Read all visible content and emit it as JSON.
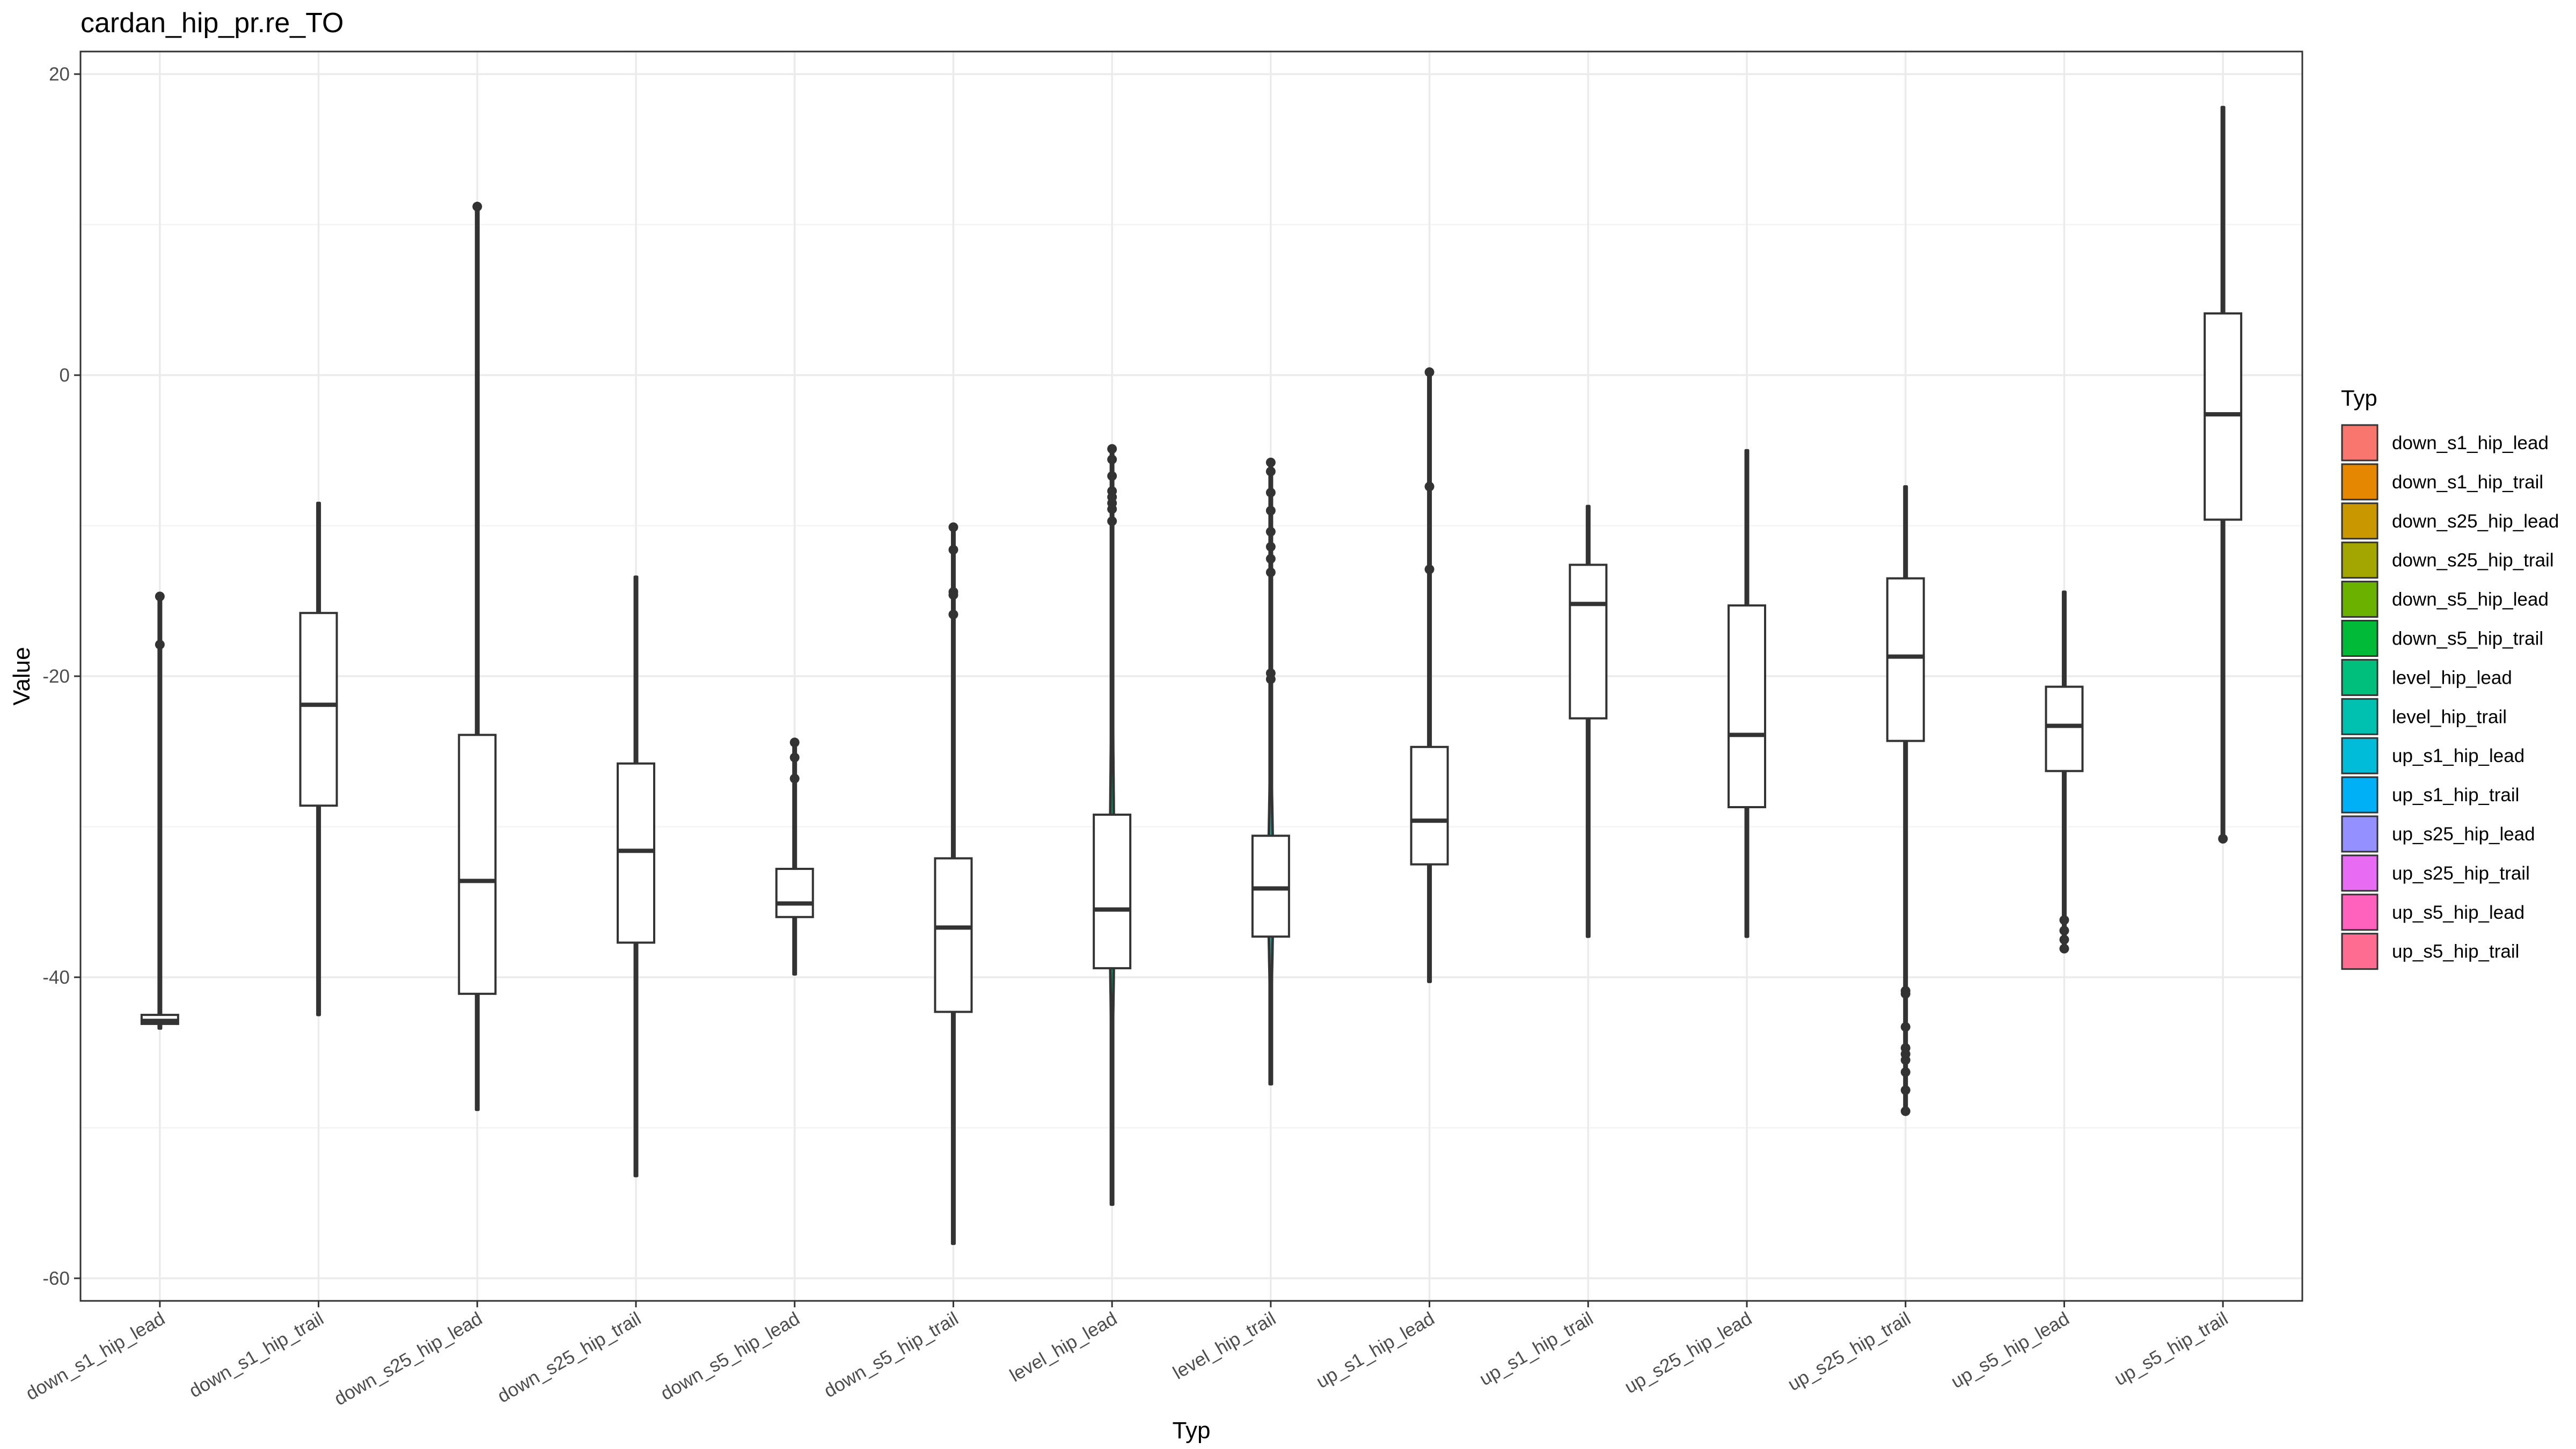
{
  "chart_data": {
    "type": "violin",
    "title": "cardan_hip_pr.re_TO",
    "xlabel": "Typ",
    "ylabel": "Value",
    "ylim": [
      -61.5,
      21.5
    ],
    "yticks": [
      20,
      0,
      -20,
      -40,
      -60
    ],
    "ytick_labels": [
      "20",
      "0",
      "-20",
      "-40",
      "-60"
    ],
    "grid": true,
    "legend": {
      "title": "Typ",
      "position": "right"
    },
    "categories": [
      "down_s1_hip_lead",
      "down_s1_hip_trail",
      "down_s25_hip_lead",
      "down_s25_hip_trail",
      "down_s5_hip_lead",
      "down_s5_hip_trail",
      "level_hip_lead",
      "level_hip_trail",
      "up_s1_hip_lead",
      "up_s1_hip_trail",
      "up_s25_hip_lead",
      "up_s25_hip_trail",
      "up_s5_hip_lead",
      "up_s5_hip_trail"
    ],
    "colors": [
      "#F8766D",
      "#E58700",
      "#C99800",
      "#A3A500",
      "#6BB100",
      "#00BA38",
      "#00BF7D",
      "#00C0AF",
      "#00BCD8",
      "#00B0F6",
      "#9590FF",
      "#E76BF3",
      "#FF62BC",
      "#FF6C91"
    ],
    "series": [
      {
        "min": -43.4,
        "max": -14.7,
        "q1": -43.1,
        "median": -42.9,
        "q3": -42.5,
        "vmax": 0.5,
        "outliers": [
          -14.7,
          -17.9
        ]
      },
      {
        "min": -42.5,
        "max": -8.5,
        "q1": -28.6,
        "median": -21.9,
        "q3": -15.8,
        "vmax": 0.5,
        "outliers": []
      },
      {
        "min": -48.8,
        "max": 11.2,
        "q1": -41.1,
        "median": -33.6,
        "q3": -23.9,
        "vmax": 0.8,
        "outliers": [
          11.2
        ]
      },
      {
        "min": -53.2,
        "max": -13.4,
        "q1": -37.7,
        "median": -31.6,
        "q3": -25.8,
        "vmax": 0.9,
        "outliers": []
      },
      {
        "min": -39.8,
        "max": -24.4,
        "q1": -36.0,
        "median": -35.1,
        "q3": -32.8,
        "vmax": 1.2,
        "outliers": [
          -24.4,
          -25.4,
          -26.8
        ]
      },
      {
        "min": -57.7,
        "max": -10.1,
        "q1": -42.3,
        "median": -36.7,
        "q3": -32.1,
        "vmax": 0.9,
        "outliers": [
          -10.1,
          -11.6,
          -14.4,
          -14.6,
          -15.9
        ]
      },
      {
        "min": -55.1,
        "max": -4.9,
        "q1": -39.4,
        "median": -35.5,
        "q3": -29.2,
        "vmax": 3.0,
        "outliers": [
          -4.9,
          -5.6,
          -6.7,
          -7.7,
          -8.1,
          -8.5,
          -8.9,
          -9.7
        ]
      },
      {
        "min": -47.1,
        "max": -5.8,
        "q1": -37.3,
        "median": -34.1,
        "q3": -30.6,
        "vmax": 3.3,
        "outliers": [
          -5.8,
          -6.4,
          -7.8,
          -9.0,
          -10.4,
          -11.4,
          -12.2,
          -13.1,
          -19.8,
          -20.2
        ]
      },
      {
        "min": -40.3,
        "max": 0.2,
        "q1": -32.5,
        "median": -29.6,
        "q3": -24.7,
        "vmax": 0.9,
        "outliers": [
          0.2,
          -7.4,
          -12.9
        ]
      },
      {
        "min": -37.3,
        "max": -8.7,
        "q1": -22.8,
        "median": -15.2,
        "q3": -12.6,
        "vmax": 1.3,
        "outliers": []
      },
      {
        "min": -37.3,
        "max": -5.0,
        "q1": -28.7,
        "median": -23.9,
        "q3": -15.3,
        "vmax": 0.8,
        "outliers": []
      },
      {
        "min": -48.9,
        "max": -7.4,
        "q1": -24.3,
        "median": -18.7,
        "q3": -13.5,
        "vmax": 1.8,
        "outliers": [
          -40.9,
          -41.1,
          -43.3,
          -44.7,
          -45.1,
          -45.5,
          -46.3,
          -47.5,
          -48.9
        ]
      },
      {
        "min": -38.1,
        "max": -14.4,
        "q1": -26.3,
        "median": -23.3,
        "q3": -20.7,
        "vmax": 1.9,
        "outliers": [
          -36.2,
          -36.9,
          -37.5,
          -38.1
        ]
      },
      {
        "min": -30.8,
        "max": 17.8,
        "q1": -9.6,
        "median": -2.6,
        "q3": 4.1,
        "vmax": 1.5,
        "outliers": [
          -30.8
        ]
      }
    ]
  }
}
